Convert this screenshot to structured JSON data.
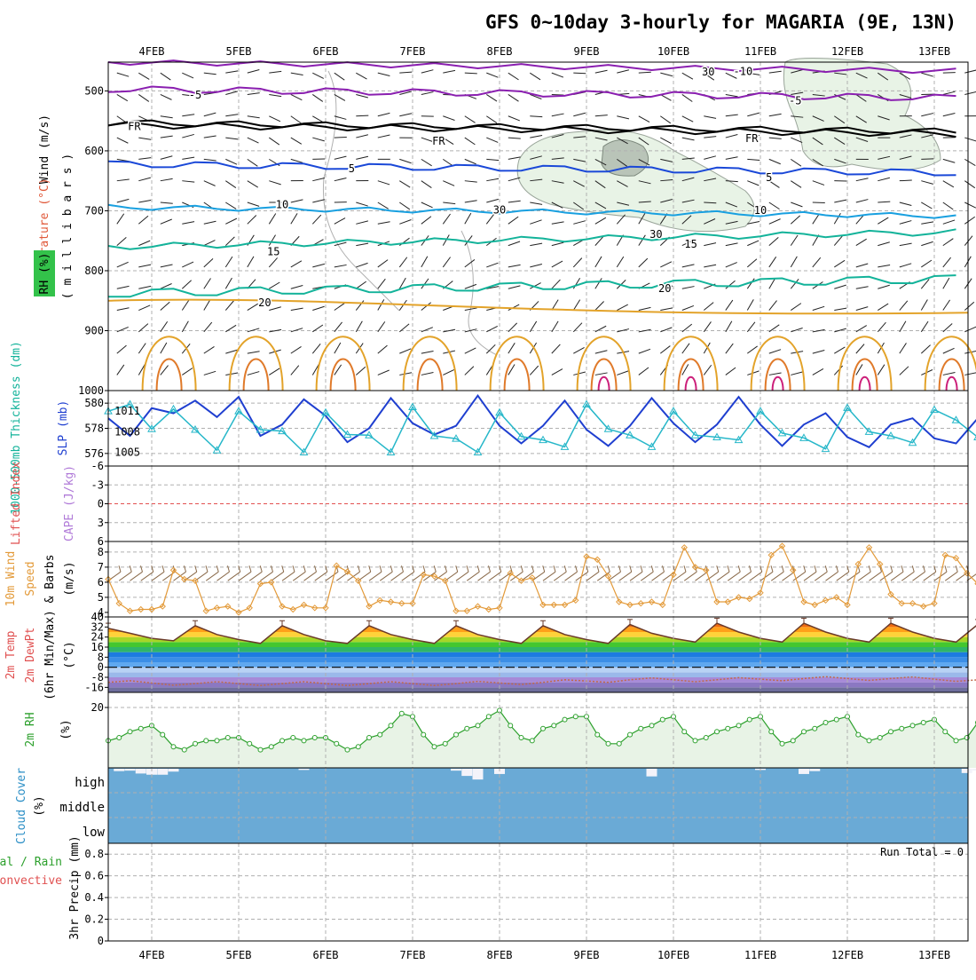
{
  "title": "GFS 0~10day 3-hourly for MAGARIA (9E, 13N)",
  "dates": [
    "4FEB",
    "5FEB",
    "6FEB",
    "7FEB",
    "8FEB",
    "9FEB",
    "10FEB",
    "11FEB",
    "12FEB",
    "13FEB"
  ],
  "colors": {
    "grid": "#b0b0b0",
    "frame": "#000000",
    "rh_fill": "#e8f3e6",
    "cloud": "#6aaad6",
    "purple": "#8a1fb0",
    "blue": "#1a48d8",
    "cyan": "#19a0e0",
    "teal": "#13b39a",
    "orange": "#e3a32a",
    "magenta": "#cc1f7a",
    "slp": "#26b7c9",
    "thick": "#1f3fd0",
    "wind10": "#e39a39",
    "green": "#2ca02c",
    "zero_line": "#e25050"
  },
  "upper": {
    "ylabel_wind": "Wind (m/s)",
    "ylabel_temp": "Temperature (°C)",
    "ylabel_rh": "RH (%)",
    "ylabel_units": "( m i l l i b a r s )",
    "y_ticks": [
      "500",
      "600",
      "700",
      "800",
      "900",
      "1000"
    ],
    "contour_labels": [
      {
        "text": "-10",
        "color": "purple",
        "x": 7.3,
        "p": 466
      },
      {
        "text": "-5",
        "color": "purple",
        "x": 1.0,
        "p": 505
      },
      {
        "text": "-5",
        "color": "purple",
        "x": 7.9,
        "p": 515
      },
      {
        "text": "FR",
        "color": "frame",
        "x": 0.3,
        "p": 558
      },
      {
        "text": "FR",
        "color": "frame",
        "x": 3.8,
        "p": 582
      },
      {
        "text": "FR",
        "color": "frame",
        "x": 7.4,
        "p": 578
      },
      {
        "text": "5",
        "color": "blue",
        "x": 2.8,
        "p": 628
      },
      {
        "text": "5",
        "color": "blue",
        "x": 7.6,
        "p": 643
      },
      {
        "text": "10",
        "color": "cyan",
        "x": 2.0,
        "p": 688
      },
      {
        "text": "10",
        "color": "cyan",
        "x": 7.5,
        "p": 698
      },
      {
        "text": "15",
        "color": "teal",
        "x": 1.9,
        "p": 767
      },
      {
        "text": "15",
        "color": "teal",
        "x": 6.7,
        "p": 754
      },
      {
        "text": "20",
        "color": "teal",
        "x": 1.8,
        "p": 852
      },
      {
        "text": "20",
        "color": "teal",
        "x": 6.4,
        "p": 828
      },
      {
        "text": "30",
        "color": "grid",
        "x": 6.9,
        "p": 467
      },
      {
        "text": "30",
        "color": "grid",
        "x": 4.5,
        "p": 697
      },
      {
        "text": "30",
        "color": "grid",
        "x": 6.3,
        "p": 738
      }
    ]
  },
  "thickness": {
    "ylabel_thick": "1000-500mb Thickness (dm)",
    "ylabel_slp": "SLP (mb)",
    "y_ticks_left": [
      "576",
      "578",
      "580"
    ],
    "y_ticks_right": [
      "1005",
      "1008",
      "1011"
    ]
  },
  "cape": {
    "ylabel_li": "Lifted Index",
    "ylabel_cape": "CAPE (J/kg)",
    "y_ticks": [
      "-6",
      "-3",
      "0",
      "3",
      "6"
    ]
  },
  "wind10": {
    "ylabel_1": "10m Wind",
    "ylabel_2": "Speed",
    "ylabel_3": "& Barbs",
    "ylabel_units": "(m/s)",
    "y_ticks": [
      "4",
      "5",
      "6",
      "7",
      "8"
    ]
  },
  "temp2m": {
    "ylabel_1": "2m Temp",
    "ylabel_2": "2m DewPt",
    "ylabel_3": "(6hr Min/Max)",
    "ylabel_units": "(°C)",
    "y_ticks": [
      "-16",
      "-8",
      "0",
      "8",
      "16",
      "24",
      "32",
      "40"
    ]
  },
  "rh2m": {
    "ylabel": "2m RH",
    "ylabel_units": "(%)",
    "y_ticks": [
      "20"
    ]
  },
  "cloud": {
    "ylabel": "Cloud Cover",
    "ylabel_units": "(%)",
    "levels": [
      "high",
      "middle",
      "low"
    ]
  },
  "precip": {
    "ylabel_1": "Total / Rain",
    "ylabel_2": "Convective",
    "ylabel_3": "3hr Precip (mm)",
    "y_ticks": [
      "0",
      "0.2",
      "0.4",
      "0.6",
      "0.8"
    ],
    "run_total": "Run Total = 0"
  },
  "chart_data": [
    {
      "type": "line",
      "name": "1000-500mb thickness",
      "x_unit": "days from 3FEB 12Z",
      "ylim": [
        575,
        581
      ],
      "x": [
        0,
        0.25,
        0.5,
        0.75,
        1,
        1.25,
        1.5,
        1.75,
        2,
        2.25,
        2.5,
        2.75,
        3,
        3.25,
        3.5,
        3.75,
        4,
        4.25,
        4.5,
        4.75,
        5,
        5.25,
        5.5,
        5.75,
        6,
        6.25,
        6.5,
        6.75,
        7,
        7.25,
        7.5,
        7.75,
        8,
        8.25,
        8.5,
        8.75,
        9,
        9.25,
        9.5,
        9.75,
        10
      ],
      "y": [
        578.8,
        577.4,
        579.6,
        579.2,
        580.2,
        578.9,
        580.5,
        577.4,
        578.3,
        580.3,
        579.0,
        576.9,
        578.0,
        580.4,
        578.4,
        577.5,
        578.2,
        580.6,
        578.2,
        576.8,
        578.2,
        580.2,
        577.9,
        576.6,
        578.2,
        580.4,
        578.4,
        576.9,
        578.3,
        580.5,
        578.3,
        576.6,
        578.3,
        579.2,
        577.3,
        576.5,
        578.3,
        578.8,
        577.2,
        576.8,
        578.8
      ]
    },
    {
      "type": "line",
      "name": "SLP",
      "x_unit": "days from 3FEB 12Z",
      "ylim": [
        1003,
        1014
      ],
      "x": [
        0,
        0.25,
        0.5,
        0.75,
        1,
        1.25,
        1.5,
        1.75,
        2,
        2.25,
        2.5,
        2.75,
        3,
        3.25,
        3.5,
        3.75,
        4,
        4.25,
        4.5,
        4.75,
        5,
        5.25,
        5.5,
        5.75,
        6,
        6.25,
        6.5,
        6.75,
        7,
        7.25,
        7.5,
        7.75,
        8,
        8.25,
        8.5,
        8.75,
        9,
        9.25,
        9.5,
        9.75,
        10
      ],
      "y": [
        1011.0,
        1012.0,
        1008.4,
        1011.3,
        1008.3,
        1005.3,
        1011.0,
        1008.3,
        1008.1,
        1005.0,
        1010.8,
        1007.6,
        1007.5,
        1005.0,
        1011.6,
        1007.4,
        1007.0,
        1005.0,
        1010.8,
        1007.3,
        1006.8,
        1005.8,
        1012.0,
        1008.4,
        1007.5,
        1005.8,
        1011.0,
        1007.5,
        1007.2,
        1006.8,
        1011.0,
        1007.8,
        1007.1,
        1005.5,
        1011.5,
        1008.0,
        1007.4,
        1006.4,
        1011.2,
        1009.7,
        1007.2
      ]
    },
    {
      "type": "line",
      "name": "Lifted Index",
      "ylim": [
        6,
        -6
      ],
      "x": [
        0,
        10
      ],
      "y": [
        0,
        0
      ]
    },
    {
      "type": "line",
      "name": "10m wind speed",
      "x_unit": "days from 3FEB 12Z",
      "ylim": [
        3.7,
        8.7
      ],
      "x": [
        0,
        0.125,
        0.25,
        0.375,
        0.5,
        0.625,
        0.75,
        0.875,
        1,
        1.125,
        1.25,
        1.375,
        1.5,
        1.625,
        1.75,
        1.875,
        2,
        2.125,
        2.25,
        2.375,
        2.5,
        2.625,
        2.75,
        2.875,
        3,
        3.125,
        3.25,
        3.375,
        3.5,
        3.625,
        3.75,
        3.875,
        4,
        4.125,
        4.25,
        4.375,
        4.5,
        4.625,
        4.75,
        4.875,
        5,
        5.125,
        5.25,
        5.375,
        5.5,
        5.625,
        5.75,
        5.875,
        6,
        6.125,
        6.25,
        6.375,
        6.5,
        6.625,
        6.75,
        6.875,
        7,
        7.125,
        7.25,
        7.375,
        7.5,
        7.625,
        7.75,
        7.875,
        8,
        8.125,
        8.25,
        8.375,
        8.5,
        8.625,
        8.75,
        8.875,
        9,
        9.125,
        9.25,
        9.375,
        9.5,
        9.625,
        9.75,
        9.875,
        10
      ],
      "y": [
        6.2,
        4.6,
        4.1,
        4.2,
        4.2,
        4.4,
        6.8,
        6.2,
        6.1,
        4.1,
        4.3,
        4.4,
        4.0,
        4.3,
        5.9,
        6.0,
        4.4,
        4.2,
        4.5,
        4.3,
        4.3,
        7.1,
        6.7,
        6.1,
        4.4,
        4.8,
        4.7,
        4.6,
        4.6,
        6.5,
        6.4,
        6.1,
        4.1,
        4.1,
        4.4,
        4.2,
        4.3,
        6.6,
        6.1,
        6.3,
        4.5,
        4.5,
        4.5,
        4.8,
        7.7,
        7.5,
        6.4,
        4.7,
        4.5,
        4.6,
        4.7,
        4.5,
        6.5,
        8.3,
        7.0,
        6.8,
        4.7,
        4.7,
        5.0,
        4.9,
        5.3,
        7.8,
        8.4,
        6.8,
        4.7,
        4.5,
        4.8,
        5.0,
        4.5,
        7.2,
        8.3,
        7.2,
        5.2,
        4.6,
        4.6,
        4.4,
        4.6,
        7.8,
        7.6,
        6.6,
        5.9
      ]
    },
    {
      "type": "area",
      "name": "2m temperature",
      "x_unit": "days from 3FEB 12Z",
      "ylim": [
        -20,
        40
      ],
      "x": [
        0,
        0.25,
        0.5,
        0.75,
        1,
        1.25,
        1.5,
        1.75,
        2,
        2.25,
        2.5,
        2.75,
        3,
        3.25,
        3.5,
        3.75,
        4,
        4.25,
        4.5,
        4.75,
        5,
        5.25,
        5.5,
        5.75,
        6,
        6.25,
        6.5,
        6.75,
        7,
        7.25,
        7.5,
        7.75,
        8,
        8.25,
        8.5,
        8.75,
        9,
        9.25,
        9.5,
        9.75,
        10
      ],
      "y": [
        31,
        27,
        23,
        21,
        33,
        26,
        22,
        19,
        33,
        26,
        21,
        19,
        33,
        26,
        22,
        19,
        33,
        26,
        22,
        19,
        33,
        26,
        22,
        19,
        34,
        27,
        23,
        20,
        35,
        28,
        23,
        20,
        35,
        28,
        23,
        20,
        35,
        28,
        23,
        20,
        34
      ]
    },
    {
      "type": "line",
      "name": "2m dew point",
      "x_unit": "days from 3FEB 12Z",
      "ylim": [
        -20,
        40
      ],
      "x": [
        0,
        1,
        2,
        3,
        4,
        5,
        6,
        7,
        8,
        9,
        10
      ],
      "y": [
        -12,
        -13,
        -13,
        -13,
        -13,
        -12,
        -10,
        -10,
        -9,
        -9,
        -10
      ]
    },
    {
      "type": "line",
      "name": "2m RH",
      "x_unit": "days from 3FEB 12Z",
      "ylim": [
        0,
        25
      ],
      "x": [
        0,
        0.125,
        0.25,
        0.375,
        0.5,
        0.625,
        0.75,
        0.875,
        1,
        1.125,
        1.25,
        1.375,
        1.5,
        1.625,
        1.75,
        1.875,
        2,
        2.125,
        2.25,
        2.375,
        2.5,
        2.625,
        2.75,
        2.875,
        3,
        3.125,
        3.25,
        3.375,
        3.5,
        3.625,
        3.75,
        3.875,
        4,
        4.125,
        4.25,
        4.375,
        4.5,
        4.625,
        4.75,
        4.875,
        5,
        5.125,
        5.25,
        5.375,
        5.5,
        5.625,
        5.75,
        5.875,
        6,
        6.125,
        6.25,
        6.375,
        6.5,
        6.625,
        6.75,
        6.875,
        7,
        7.125,
        7.25,
        7.375,
        7.5,
        7.625,
        7.75,
        7.875,
        8,
        8.125,
        8.25,
        8.375,
        8.5,
        8.625,
        8.75,
        8.875,
        9,
        9.125,
        9.25,
        9.375,
        9.5,
        9.625,
        9.75,
        9.875,
        10
      ],
      "y": [
        9,
        10,
        12,
        13,
        14,
        11,
        7,
        6,
        8,
        9,
        9,
        10,
        10,
        8,
        6,
        7,
        9,
        10,
        9,
        10,
        10,
        8,
        6,
        7,
        10,
        11,
        14,
        18,
        17,
        11,
        7,
        8,
        11,
        13,
        14,
        17,
        19,
        14,
        10,
        9,
        13,
        14,
        16,
        17,
        17,
        11,
        8,
        8,
        11,
        13,
        14,
        16,
        17,
        12,
        9,
        10,
        12,
        13,
        14,
        16,
        17,
        12,
        8,
        9,
        12,
        13,
        15,
        16,
        17,
        11,
        9,
        10,
        12,
        13,
        14,
        15,
        16,
        12,
        9,
        10,
        15
      ]
    },
    {
      "type": "bar",
      "name": "high cloud cover",
      "x_unit": "days from 3FEB 12Z",
      "ylim": [
        0,
        100
      ],
      "x": [
        0.125,
        0.25,
        0.375,
        0.5,
        0.625,
        0.75,
        2.25,
        4.0,
        4.125,
        4.25,
        4.5,
        6.25,
        7.5,
        8.0,
        8.125,
        9.875,
        10
      ],
      "y": [
        10,
        8,
        20,
        25,
        25,
        12,
        5,
        8,
        30,
        45,
        22,
        32,
        5,
        22,
        10,
        18,
        8
      ]
    },
    {
      "type": "bar",
      "name": "3hr precip",
      "ylim": [
        0,
        0.9
      ],
      "x": [],
      "y": []
    }
  ]
}
